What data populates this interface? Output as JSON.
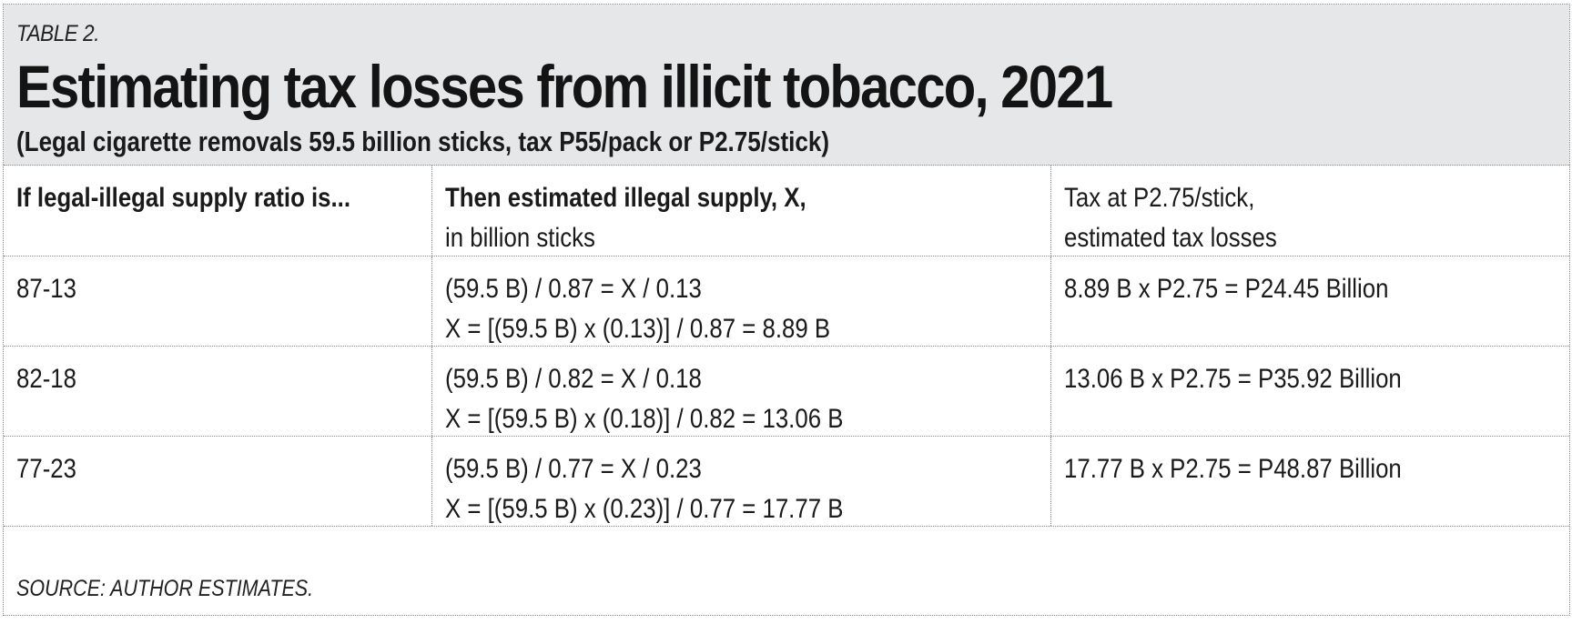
{
  "table_label": "TABLE 2.",
  "title": "Estimating tax losses from illicit tobacco, 2021",
  "subtitle": "(Legal cigarette removals 59.5 billion sticks, tax P55/pack or P2.75/stick)",
  "columns": [
    {
      "line1": "If legal-illegal supply ratio is...",
      "line2": ""
    },
    {
      "line1": "Then estimated illegal supply, X,",
      "line2": "in billion sticks"
    },
    {
      "line1": "Tax at P2.75/stick,",
      "line2": "estimated tax losses"
    }
  ],
  "rows": [
    {
      "ratio": "87-13",
      "supply_line1": "(59.5 B) / 0.87 = X / 0.13",
      "supply_line2": "X = [(59.5 B) x (0.13)] / 0.87 = 8.89 B",
      "tax": "8.89 B x P2.75 = P24.45 Billion"
    },
    {
      "ratio": "82-18",
      "supply_line1": "(59.5 B) / 0.82 = X / 0.18",
      "supply_line2": "X = [(59.5 B) x (0.18)] / 0.82 = 13.06 B",
      "tax": "13.06 B x P2.75 = P35.92 Billion"
    },
    {
      "ratio": "77-23",
      "supply_line1": "(59.5 B) / 0.77 = X / 0.23",
      "supply_line2": "X = [(59.5 B) x (0.23)] / 0.77 = 17.77 B",
      "tax": "17.77 B x P2.75 = P48.87 Billion"
    }
  ],
  "source": "SOURCE: AUTHOR ESTIMATES."
}
